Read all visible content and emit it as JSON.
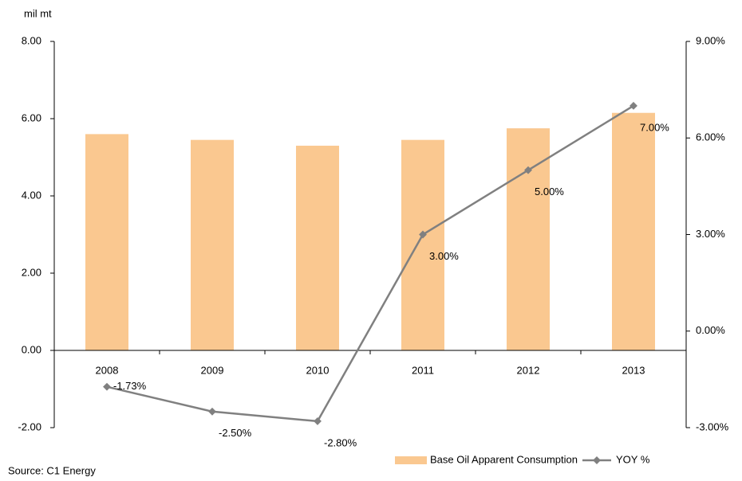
{
  "chart_data": {
    "type": "bar-line",
    "y_axis_title": "mil mt",
    "source": "Source: C1 Energy",
    "categories": [
      "2008",
      "2009",
      "2010",
      "2011",
      "2012",
      "2013"
    ],
    "series": [
      {
        "name": "Base Oil Apparent Consumption",
        "type": "bar",
        "color": "#fac890",
        "values": [
          5.6,
          5.45,
          5.3,
          5.45,
          5.75,
          6.15
        ]
      },
      {
        "name": "YOY %",
        "type": "line",
        "axis": "y2",
        "color": "#808080",
        "values": [
          -1.73,
          -2.5,
          -2.8,
          3,
          5,
          7
        ],
        "value_labels": [
          "-1.73%",
          "-2.50%",
          "-2.80%",
          "3.00%",
          "5.00%",
          "7.00%"
        ]
      }
    ],
    "ylim": [
      -2,
      8
    ],
    "yticks": [
      {
        "value": -2,
        "label": "-2.00"
      },
      {
        "value": 0,
        "label": "0.00"
      },
      {
        "value": 2,
        "label": "2.00"
      },
      {
        "value": 4,
        "label": "4.00"
      },
      {
        "value": 6,
        "label": "6.00"
      },
      {
        "value": 8,
        "label": "8.00"
      }
    ],
    "y2lim": [
      -3,
      9
    ],
    "y2ticks": [
      {
        "value": -3,
        "label": "-3.00%"
      },
      {
        "value": 0,
        "label": "0.00%"
      },
      {
        "value": 3,
        "label": "3.00%"
      },
      {
        "value": 6,
        "label": "6.00%"
      },
      {
        "value": 9,
        "label": "9.00%"
      }
    ],
    "legend": "bottom-right",
    "grid": false
  }
}
